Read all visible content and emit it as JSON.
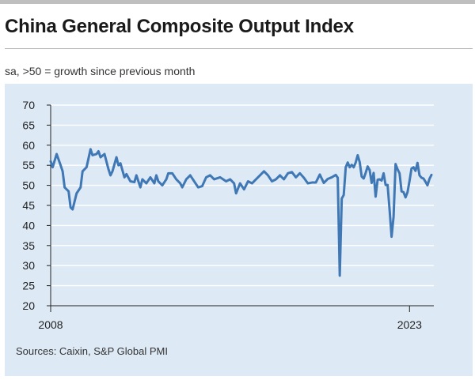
{
  "header": {
    "title": "China General Composite Output Index",
    "subtitle": "sa, >50 = growth since previous month"
  },
  "footer": {
    "source": "Sources: Caixin, S&P Global PMI"
  },
  "colors": {
    "line": "#3f78b4",
    "panel": "#dde9f5",
    "grid": "#ffffff",
    "axis": "#222222"
  },
  "chart_data": {
    "type": "line",
    "title": "China General Composite Output Index",
    "subtitle": "sa, >50 = growth since previous month",
    "xlabel": "",
    "ylabel": "",
    "ylim": [
      20,
      70
    ],
    "yticks": [
      20,
      25,
      30,
      35,
      40,
      45,
      50,
      55,
      60,
      65,
      70
    ],
    "xlim": [
      "2008-01",
      "2023-12"
    ],
    "xtick_labels": [
      "2008",
      "2023"
    ],
    "grid": true,
    "series": [
      {
        "name": "",
        "points": [
          [
            "2008-01",
            56.0
          ],
          [
            "2008-02",
            54.5
          ],
          [
            "2008-04",
            57.8
          ],
          [
            "2008-06",
            55.0
          ],
          [
            "2008-07",
            53.5
          ],
          [
            "2008-08",
            49.5
          ],
          [
            "2008-10",
            48.5
          ],
          [
            "2008-11",
            44.5
          ],
          [
            "2008-12",
            44.0
          ],
          [
            "2009-02",
            48.0
          ],
          [
            "2009-04",
            49.5
          ],
          [
            "2009-05",
            53.5
          ],
          [
            "2009-07",
            54.5
          ],
          [
            "2009-09",
            59.0
          ],
          [
            "2009-10",
            57.5
          ],
          [
            "2009-12",
            57.8
          ],
          [
            "2010-01",
            58.5
          ],
          [
            "2010-02",
            57.0
          ],
          [
            "2010-04",
            57.8
          ],
          [
            "2010-06",
            54.0
          ],
          [
            "2010-07",
            52.5
          ],
          [
            "2010-08",
            53.5
          ],
          [
            "2010-10",
            57.0
          ],
          [
            "2010-11",
            55.0
          ],
          [
            "2010-12",
            55.5
          ],
          [
            "2011-02",
            52.0
          ],
          [
            "2011-03",
            52.8
          ],
          [
            "2011-05",
            51.0
          ],
          [
            "2011-07",
            50.8
          ],
          [
            "2011-08",
            52.5
          ],
          [
            "2011-10",
            49.5
          ],
          [
            "2011-11",
            51.5
          ],
          [
            "2012-01",
            50.5
          ],
          [
            "2012-03",
            52.0
          ],
          [
            "2012-05",
            50.5
          ],
          [
            "2012-06",
            52.5
          ],
          [
            "2012-07",
            51.0
          ],
          [
            "2012-09",
            50.0
          ],
          [
            "2012-11",
            51.5
          ],
          [
            "2012-12",
            53.0
          ],
          [
            "2013-02",
            53.0
          ],
          [
            "2013-04",
            51.5
          ],
          [
            "2013-06",
            50.5
          ],
          [
            "2013-07",
            49.5
          ],
          [
            "2013-09",
            51.5
          ],
          [
            "2013-11",
            52.5
          ],
          [
            "2014-01",
            51.0
          ],
          [
            "2014-03",
            49.5
          ],
          [
            "2014-05",
            49.8
          ],
          [
            "2014-07",
            52.0
          ],
          [
            "2014-09",
            52.5
          ],
          [
            "2014-11",
            51.5
          ],
          [
            "2015-02",
            52.0
          ],
          [
            "2015-05",
            51.0
          ],
          [
            "2015-07",
            51.5
          ],
          [
            "2015-09",
            50.5
          ],
          [
            "2015-10",
            48.0
          ],
          [
            "2015-12",
            50.5
          ],
          [
            "2016-02",
            49.0
          ],
          [
            "2016-04",
            51.0
          ],
          [
            "2016-06",
            50.5
          ],
          [
            "2016-08",
            51.5
          ],
          [
            "2016-10",
            52.5
          ],
          [
            "2016-12",
            53.5
          ],
          [
            "2017-02",
            52.5
          ],
          [
            "2017-04",
            51.0
          ],
          [
            "2017-06",
            51.5
          ],
          [
            "2017-08",
            52.5
          ],
          [
            "2017-10",
            51.5
          ],
          [
            "2017-12",
            53.0
          ],
          [
            "2018-02",
            53.3
          ],
          [
            "2018-04",
            52.0
          ],
          [
            "2018-06",
            53.0
          ],
          [
            "2018-08",
            51.9
          ],
          [
            "2018-10",
            50.5
          ],
          [
            "2018-12",
            50.7
          ],
          [
            "2019-02",
            50.7
          ],
          [
            "2019-04",
            52.7
          ],
          [
            "2019-06",
            50.6
          ],
          [
            "2019-08",
            51.6
          ],
          [
            "2019-10",
            52.0
          ],
          [
            "2019-12",
            52.6
          ],
          [
            "2020-01",
            51.9
          ],
          [
            "2020-02",
            27.5
          ],
          [
            "2020-03",
            46.7
          ],
          [
            "2020-04",
            47.6
          ],
          [
            "2020-05",
            54.5
          ],
          [
            "2020-06",
            55.7
          ],
          [
            "2020-07",
            54.5
          ],
          [
            "2020-08",
            55.1
          ],
          [
            "2020-09",
            54.5
          ],
          [
            "2020-10",
            55.7
          ],
          [
            "2020-11",
            57.5
          ],
          [
            "2020-12",
            55.8
          ],
          [
            "2021-01",
            52.2
          ],
          [
            "2021-02",
            51.7
          ],
          [
            "2021-03",
            53.1
          ],
          [
            "2021-04",
            54.7
          ],
          [
            "2021-05",
            53.8
          ],
          [
            "2021-06",
            50.6
          ],
          [
            "2021-07",
            53.1
          ],
          [
            "2021-08",
            47.2
          ],
          [
            "2021-09",
            51.4
          ],
          [
            "2021-10",
            51.5
          ],
          [
            "2021-11",
            51.2
          ],
          [
            "2021-12",
            53.0
          ],
          [
            "2022-01",
            50.1
          ],
          [
            "2022-02",
            50.1
          ],
          [
            "2022-03",
            43.9
          ],
          [
            "2022-04",
            37.2
          ],
          [
            "2022-05",
            42.2
          ],
          [
            "2022-06",
            55.3
          ],
          [
            "2022-07",
            54.0
          ],
          [
            "2022-08",
            53.0
          ],
          [
            "2022-09",
            48.5
          ],
          [
            "2022-10",
            48.3
          ],
          [
            "2022-11",
            47.0
          ],
          [
            "2022-12",
            48.3
          ],
          [
            "2023-01",
            51.1
          ],
          [
            "2023-02",
            54.2
          ],
          [
            "2023-03",
            54.5
          ],
          [
            "2023-04",
            53.6
          ],
          [
            "2023-05",
            55.6
          ],
          [
            "2023-06",
            52.5
          ],
          [
            "2023-07",
            51.9
          ],
          [
            "2023-08",
            51.7
          ],
          [
            "2023-09",
            50.9
          ],
          [
            "2023-10",
            50.0
          ],
          [
            "2023-11",
            51.6
          ],
          [
            "2023-12",
            52.6
          ]
        ]
      }
    ]
  }
}
